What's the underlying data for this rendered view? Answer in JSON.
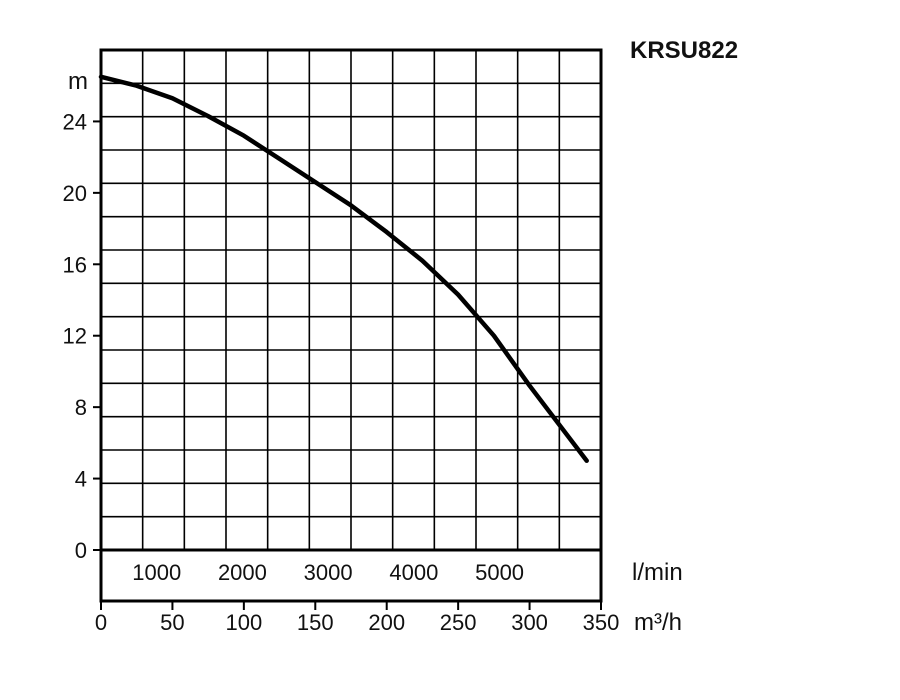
{
  "chart_data": {
    "type": "line",
    "title": "KRSU822",
    "ylabel": "m",
    "ylim": [
      0,
      28
    ],
    "yticks": [
      0,
      4,
      8,
      12,
      16,
      20,
      24
    ],
    "ytick_labels": [
      "0",
      "4",
      "8",
      "12",
      "16",
      "20",
      "24"
    ],
    "x_primary": {
      "unit": "l/min",
      "ticks": [
        1000,
        2000,
        3000,
        4000,
        5000
      ],
      "tick_labels": [
        "1000",
        "2000",
        "3000",
        "4000",
        "5000"
      ]
    },
    "x_secondary": {
      "unit": "m³/h",
      "lim": [
        0,
        350
      ],
      "ticks": [
        0,
        50,
        100,
        150,
        200,
        250,
        300,
        350
      ],
      "tick_labels": [
        "0",
        "50",
        "100",
        "150",
        "200",
        "250",
        "300",
        "350"
      ]
    },
    "grid": true,
    "series": [
      {
        "x": [
          0,
          25,
          50,
          75,
          100,
          125,
          150,
          175,
          200,
          225,
          250,
          275,
          300,
          320,
          340
        ],
        "y": [
          26.5,
          26,
          25.3,
          24.3,
          23.2,
          21.9,
          20.6,
          19.3,
          17.8,
          16.2,
          14.3,
          12.0,
          9.2,
          7.1,
          5.0
        ]
      }
    ]
  }
}
